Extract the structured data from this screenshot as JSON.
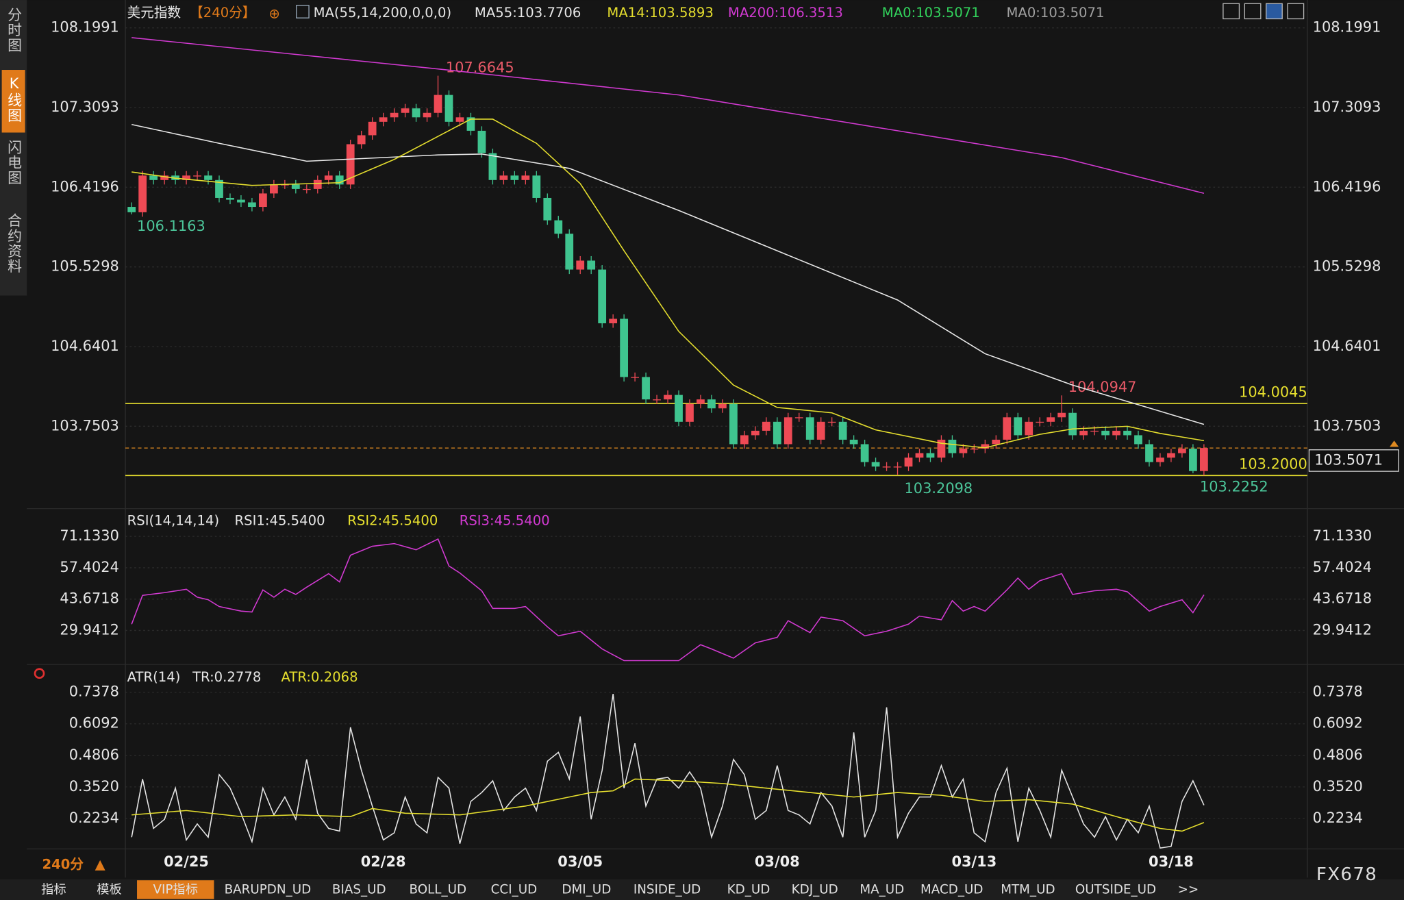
{
  "chart_data": [
    {
      "type": "candlestick",
      "title": "美元指数",
      "period": "【240分】",
      "indicator": "MA(55,14,200,0,0,0)",
      "up_color": "#ee4a55",
      "down_color": "#3fc48f",
      "grid": true,
      "ylim": [
        102.86,
        108.43
      ],
      "yticks": [
        108.1991,
        107.3093,
        106.4196,
        105.5298,
        104.6401,
        103.7503
      ],
      "categories": [
        null,
        null,
        null,
        null,
        null,
        "02/25",
        null,
        null,
        null,
        null,
        null,
        null,
        null,
        null,
        null,
        null,
        null,
        null,
        null,
        null,
        null,
        null,
        null,
        "02/28",
        null,
        null,
        null,
        null,
        null,
        null,
        null,
        null,
        null,
        null,
        null,
        null,
        null,
        null,
        null,
        null,
        null,
        "03/05",
        null,
        null,
        null,
        null,
        null,
        null,
        null,
        null,
        null,
        null,
        null,
        null,
        null,
        null,
        null,
        null,
        null,
        "03/08",
        null,
        null,
        null,
        null,
        null,
        null,
        null,
        null,
        null,
        null,
        null,
        null,
        null,
        null,
        null,
        null,
        null,
        "03/13",
        null,
        null,
        null,
        null,
        null,
        null,
        null,
        null,
        null,
        null,
        null,
        null,
        null,
        null,
        null,
        null,
        null,
        "03/18",
        null,
        null,
        null
      ],
      "open": [
        106.2,
        106.14,
        106.55,
        106.5,
        106.55,
        106.5,
        106.55,
        106.55,
        106.5,
        106.3,
        106.28,
        106.25,
        106.2,
        106.35,
        106.45,
        106.45,
        106.4,
        106.4,
        106.5,
        106.55,
        106.45,
        106.9,
        107.0,
        107.15,
        107.2,
        107.25,
        107.3,
        107.2,
        107.25,
        107.45,
        107.15,
        107.2,
        107.05,
        106.8,
        106.5,
        106.55,
        106.5,
        106.55,
        106.3,
        106.05,
        105.9,
        105.5,
        105.6,
        105.5,
        104.9,
        104.95,
        104.3,
        104.3,
        104.05,
        104.05,
        104.1,
        103.8,
        104.0,
        104.05,
        103.95,
        104.0,
        103.55,
        103.65,
        103.7,
        103.8,
        103.55,
        103.85,
        103.85,
        103.6,
        103.8,
        103.8,
        103.6,
        103.55,
        103.35,
        103.3,
        103.3,
        103.3,
        103.4,
        103.45,
        103.4,
        103.6,
        103.45,
        103.5,
        103.5,
        103.55,
        103.6,
        103.85,
        103.65,
        103.8,
        103.8,
        103.85,
        103.9,
        103.65,
        103.7,
        103.7,
        103.65,
        103.7,
        103.65,
        103.55,
        103.35,
        103.4,
        103.45,
        103.5,
        103.25
      ],
      "high": [
        106.25,
        106.6,
        106.6,
        106.6,
        106.6,
        106.6,
        106.6,
        106.6,
        106.55,
        106.35,
        106.33,
        106.3,
        106.4,
        106.5,
        106.5,
        106.5,
        106.45,
        106.55,
        106.6,
        106.6,
        106.95,
        107.05,
        107.2,
        107.25,
        107.3,
        107.35,
        107.35,
        107.3,
        107.6645,
        107.5,
        107.25,
        107.25,
        107.1,
        106.85,
        106.6,
        106.6,
        106.6,
        106.6,
        106.35,
        106.1,
        105.95,
        105.65,
        105.65,
        105.55,
        105.0,
        105.0,
        104.35,
        104.35,
        104.1,
        104.15,
        104.15,
        104.05,
        104.1,
        104.1,
        104.05,
        104.05,
        103.7,
        103.75,
        103.85,
        103.85,
        103.9,
        103.9,
        103.9,
        103.85,
        103.85,
        103.85,
        103.65,
        103.6,
        103.4,
        103.35,
        103.35,
        103.45,
        103.5,
        103.5,
        103.65,
        103.65,
        103.55,
        103.55,
        103.6,
        103.65,
        103.9,
        103.9,
        103.85,
        103.85,
        103.9,
        104.0947,
        103.95,
        103.75,
        103.75,
        103.75,
        103.75,
        103.75,
        103.7,
        103.6,
        103.45,
        103.5,
        103.55,
        103.55,
        103.55
      ],
      "low": [
        106.1163,
        106.09,
        106.45,
        106.45,
        106.45,
        106.45,
        106.5,
        106.45,
        106.25,
        106.23,
        106.2,
        106.15,
        106.15,
        106.3,
        106.4,
        106.35,
        106.35,
        106.35,
        106.45,
        106.4,
        106.4,
        106.85,
        106.95,
        107.1,
        107.15,
        107.2,
        107.15,
        107.15,
        107.2,
        107.1,
        107.1,
        107.0,
        106.75,
        106.45,
        106.45,
        106.45,
        106.45,
        106.25,
        106.0,
        105.85,
        105.45,
        105.45,
        105.45,
        104.85,
        104.85,
        104.25,
        104.25,
        104.0,
        104.0,
        104.0,
        103.75,
        103.75,
        103.95,
        103.9,
        103.9,
        103.5,
        103.5,
        103.6,
        103.65,
        103.5,
        103.5,
        103.8,
        103.55,
        103.55,
        103.75,
        103.55,
        103.5,
        103.3,
        103.25,
        103.25,
        103.2098,
        103.25,
        103.35,
        103.35,
        103.35,
        103.4,
        103.4,
        103.45,
        103.45,
        103.5,
        103.55,
        103.6,
        103.6,
        103.75,
        103.75,
        103.8,
        103.6,
        103.6,
        103.65,
        103.6,
        103.6,
        103.6,
        103.5,
        103.3,
        103.3,
        103.35,
        103.4,
        103.2252,
        103.2
      ],
      "close": [
        106.14,
        106.55,
        106.5,
        106.55,
        106.5,
        106.55,
        106.55,
        106.5,
        106.3,
        106.28,
        106.25,
        106.2,
        106.35,
        106.45,
        106.45,
        106.4,
        106.4,
        106.5,
        106.55,
        106.45,
        106.9,
        107.0,
        107.15,
        107.2,
        107.25,
        107.3,
        107.2,
        107.25,
        107.45,
        107.15,
        107.2,
        107.05,
        106.8,
        106.5,
        106.55,
        106.5,
        106.55,
        106.3,
        106.05,
        105.9,
        105.5,
        105.6,
        105.5,
        104.9,
        104.95,
        104.3,
        104.3,
        104.05,
        104.05,
        104.1,
        103.8,
        104.0,
        104.05,
        103.95,
        104.0,
        103.55,
        103.65,
        103.7,
        103.8,
        103.55,
        103.85,
        103.85,
        103.6,
        103.8,
        103.8,
        103.6,
        103.55,
        103.35,
        103.3,
        103.3,
        103.3,
        103.4,
        103.45,
        103.4,
        103.6,
        103.45,
        103.5,
        103.5,
        103.55,
        103.6,
        103.85,
        103.65,
        103.8,
        103.8,
        103.85,
        103.9,
        103.65,
        103.7,
        103.7,
        103.65,
        103.7,
        103.65,
        103.55,
        103.35,
        103.4,
        103.45,
        103.5,
        103.25,
        103.5071
      ],
      "series": [
        {
          "name": "MA55:103.7706",
          "color": "#e8e8e8",
          "x": [
            0,
            8,
            16,
            28,
            32,
            40,
            50,
            61,
            70,
            78,
            86,
            98
          ],
          "values": [
            107.12,
            106.91,
            106.71,
            106.78,
            106.79,
            106.63,
            106.16,
            105.61,
            105.16,
            104.56,
            104.21,
            103.7706
          ]
        },
        {
          "name": "MA14:103.5893",
          "color": "#e6df2e",
          "x": [
            0,
            4,
            11,
            19,
            24,
            31,
            33,
            37,
            41,
            45,
            50,
            55,
            59,
            64,
            68,
            74,
            78,
            83,
            86,
            91,
            94,
            98
          ],
          "values": [
            106.59,
            106.52,
            106.44,
            106.47,
            106.73,
            107.18,
            107.18,
            106.91,
            106.46,
            105.71,
            104.81,
            104.21,
            103.96,
            103.9,
            103.71,
            103.56,
            103.51,
            103.66,
            103.72,
            103.75,
            103.67,
            103.5893
          ]
        },
        {
          "name": "MA200:106.3513",
          "color": "#d23ad2",
          "x": [
            0,
            28,
            50,
            70,
            85,
            98
          ],
          "values": [
            108.09,
            107.74,
            107.45,
            107.05,
            106.75,
            106.3513
          ]
        }
      ],
      "legend_extra": [
        {
          "name": "MA0:103.5071",
          "color": "#32d35c"
        },
        {
          "name": "MA0:103.5071",
          "color": "#a0a0a0"
        }
      ],
      "hlines": [
        {
          "value": 104.0045,
          "label": "104.0045",
          "color": "#e6df2e"
        },
        {
          "value": 103.2,
          "label": "103.2000",
          "color": "#e6df2e"
        }
      ],
      "last_price": 103.5071,
      "last_price_color": "#e08a20",
      "annotations": [
        {
          "text": "107.6645",
          "color": "#e85a68"
        },
        {
          "text": "106.1163",
          "color": "#4cc69a"
        },
        {
          "text": "103.2098",
          "color": "#4cc69a"
        },
        {
          "text": "104.0947",
          "color": "#e85a68"
        },
        {
          "text": "103.2252",
          "color": "#4cc69a"
        }
      ]
    },
    {
      "type": "line",
      "title": "RSI(14,14,14)",
      "grid": true,
      "ylim": [
        15.03,
        74.66
      ],
      "yticks": [
        {
          "value": 71.133,
          "label": "71.1330"
        },
        57.4024,
        43.6718,
        29.9412
      ],
      "legend_extra": [
        {
          "name": "RSI1:45.5400",
          "color": "#e6e6e6"
        },
        {
          "name": "RSI2:45.5400",
          "color": "#e6df2e"
        }
      ],
      "series": [
        {
          "name": "RSI3:45.5400",
          "color": "#d23ad2",
          "x": [
            0,
            1,
            3,
            5,
            6,
            7,
            8,
            10,
            11,
            12,
            13,
            14,
            15,
            16,
            18,
            19,
            20,
            22,
            24,
            26,
            28,
            29,
            30,
            32,
            33,
            35,
            36,
            38,
            39,
            41,
            43,
            45,
            48,
            50,
            52,
            53,
            55,
            57,
            59,
            60,
            62,
            63,
            65,
            67,
            69,
            71,
            72,
            74,
            75,
            76,
            77,
            78,
            80,
            81,
            82,
            83,
            85,
            86,
            88,
            90,
            91,
            93,
            94,
            96,
            97,
            98
          ],
          "values": [
            32.7,
            45.3,
            46.5,
            48.0,
            44.5,
            43.4,
            40.4,
            38.4,
            38.0,
            47.7,
            44.5,
            48.0,
            45.7,
            48.9,
            54.8,
            51.2,
            62.9,
            66.8,
            68.0,
            65.3,
            70.0,
            58.2,
            55.1,
            47.3,
            39.6,
            39.6,
            40.4,
            31.5,
            27.6,
            29.6,
            21.8,
            16.7,
            16.7,
            16.7,
            23.7,
            21.8,
            17.8,
            24.5,
            26.9,
            34.2,
            29.0,
            35.8,
            34.2,
            27.6,
            29.6,
            32.7,
            36.2,
            34.6,
            43.0,
            38.4,
            40.4,
            38.4,
            47.7,
            52.9,
            48.0,
            51.7,
            54.8,
            45.7,
            47.3,
            48.0,
            46.9,
            38.4,
            40.4,
            43.4,
            37.7,
            45.54
          ]
        }
      ]
    },
    {
      "type": "line",
      "title": "ATR(14)",
      "grid": true,
      "ylim": [
        0.092,
        0.767
      ],
      "yticks": [
        0.7378,
        0.6092,
        0.4806,
        {
          "value": 0.352,
          "label": "0.3520"
        },
        0.2234
      ],
      "series": [
        {
          "name": "TR:0.2778",
          "color": "#e6e6e6",
          "values": [
            0.147,
            0.384,
            0.183,
            0.22,
            0.347,
            0.136,
            0.201,
            0.147,
            0.402,
            0.347,
            0.245,
            0.129,
            0.347,
            0.238,
            0.311,
            0.22,
            0.464,
            0.245,
            0.183,
            0.172,
            0.595,
            0.42,
            0.274,
            0.136,
            0.165,
            0.311,
            0.201,
            0.165,
            0.391,
            0.347,
            0.121,
            0.293,
            0.329,
            0.377,
            0.256,
            0.311,
            0.347,
            0.256,
            0.457,
            0.493,
            0.384,
            0.639,
            0.22,
            0.42,
            0.731,
            0.347,
            0.53,
            0.274,
            0.384,
            0.391,
            0.347,
            0.413,
            0.347,
            0.147,
            0.274,
            0.464,
            0.402,
            0.22,
            0.256,
            0.439,
            0.256,
            0.238,
            0.201,
            0.329,
            0.274,
            0.147,
            0.574,
            0.147,
            0.256,
            0.676,
            0.147,
            0.245,
            0.311,
            0.311,
            0.439,
            0.311,
            0.384,
            0.165,
            0.129,
            0.329,
            0.428,
            0.129,
            0.347,
            0.256,
            0.147,
            0.42,
            0.311,
            0.201,
            0.147,
            0.231,
            0.136,
            0.22,
            0.165,
            0.274,
            0.103,
            0.11,
            0.293,
            0.377,
            0.2778
          ]
        },
        {
          "name": "ATR:0.2068",
          "color": "#e6df2e",
          "x": [
            0,
            5,
            10,
            15,
            20,
            22,
            25,
            30,
            33,
            36,
            40,
            42,
            44,
            46,
            50,
            54,
            58,
            62,
            66,
            70,
            74,
            78,
            82,
            86,
            90,
            94,
            96,
            98
          ],
          "values": [
            0.238,
            0.256,
            0.231,
            0.238,
            0.231,
            0.264,
            0.245,
            0.238,
            0.256,
            0.274,
            0.311,
            0.329,
            0.336,
            0.384,
            0.377,
            0.366,
            0.347,
            0.329,
            0.311,
            0.329,
            0.318,
            0.293,
            0.3,
            0.282,
            0.231,
            0.183,
            0.172,
            0.2068
          ]
        }
      ]
    }
  ],
  "sidebar": [
    "分时图",
    "K线图",
    "闪电图",
    "合约资料"
  ],
  "period_selector": "240分",
  "tabs": [
    "指标",
    "模板",
    "VIP指标",
    "BARUPDN_UD",
    "BIAS_UD",
    "BOLL_UD",
    "CCI_UD",
    "DMI_UD",
    "INSIDE_UD",
    "KD_UD",
    "KDJ_UD",
    "MA_UD",
    "MACD_UD",
    "MTM_UD",
    "OUTSIDE_UD",
    ">>"
  ],
  "watermark": "FX678"
}
